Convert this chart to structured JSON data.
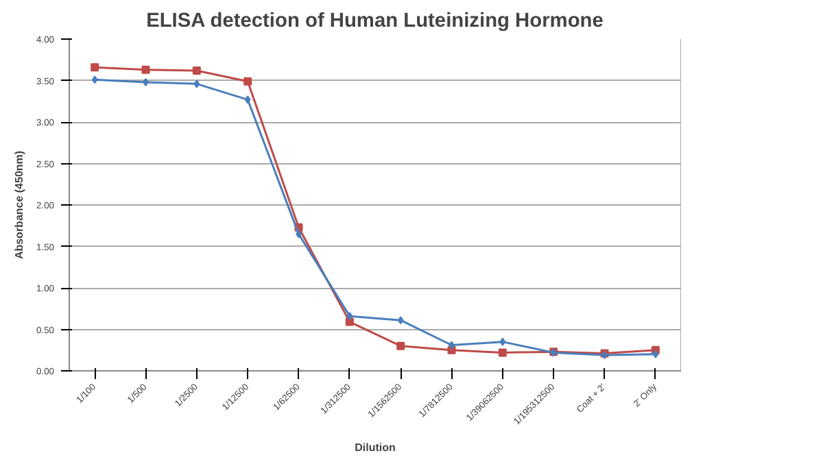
{
  "chart_data": {
    "type": "line",
    "title": "ELISA detection of Human Luteinizing Hormone",
    "xlabel": "Dilution",
    "ylabel": "Absorbance (450nm)",
    "categories": [
      "1/100",
      "1/500",
      "1/2500",
      "1/12500",
      "1/62500",
      "1/312500",
      "1/1562500",
      "1/7812500",
      "1/39062500",
      "1/195312500",
      "Coat + 2'",
      "2' Only"
    ],
    "series": [
      {
        "color": "#4a7ebb",
        "marker": "diamond",
        "values": [
          3.51,
          3.48,
          3.46,
          3.27,
          1.65,
          0.66,
          0.61,
          0.31,
          0.35,
          0.22,
          0.19,
          0.2
        ]
      },
      {
        "color": "#be4b48",
        "marker": "square",
        "values": [
          3.66,
          3.63,
          3.62,
          3.49,
          1.73,
          0.59,
          0.3,
          0.25,
          0.22,
          0.23,
          0.21,
          0.25
        ]
      }
    ],
    "ylim": [
      0,
      4
    ],
    "yticks": [
      {
        "value": 0,
        "label": "0.00"
      },
      {
        "value": 0.5,
        "label": "0.50"
      },
      {
        "value": 1,
        "label": "1.00"
      },
      {
        "value": 1.5,
        "label": "1.50"
      },
      {
        "value": 2,
        "label": "2.00"
      },
      {
        "value": 2.5,
        "label": "2.50"
      },
      {
        "value": 3,
        "label": "3.00"
      },
      {
        "value": 3.5,
        "label": "3.50"
      },
      {
        "value": 4,
        "label": "4.00"
      }
    ],
    "grid": "y"
  }
}
